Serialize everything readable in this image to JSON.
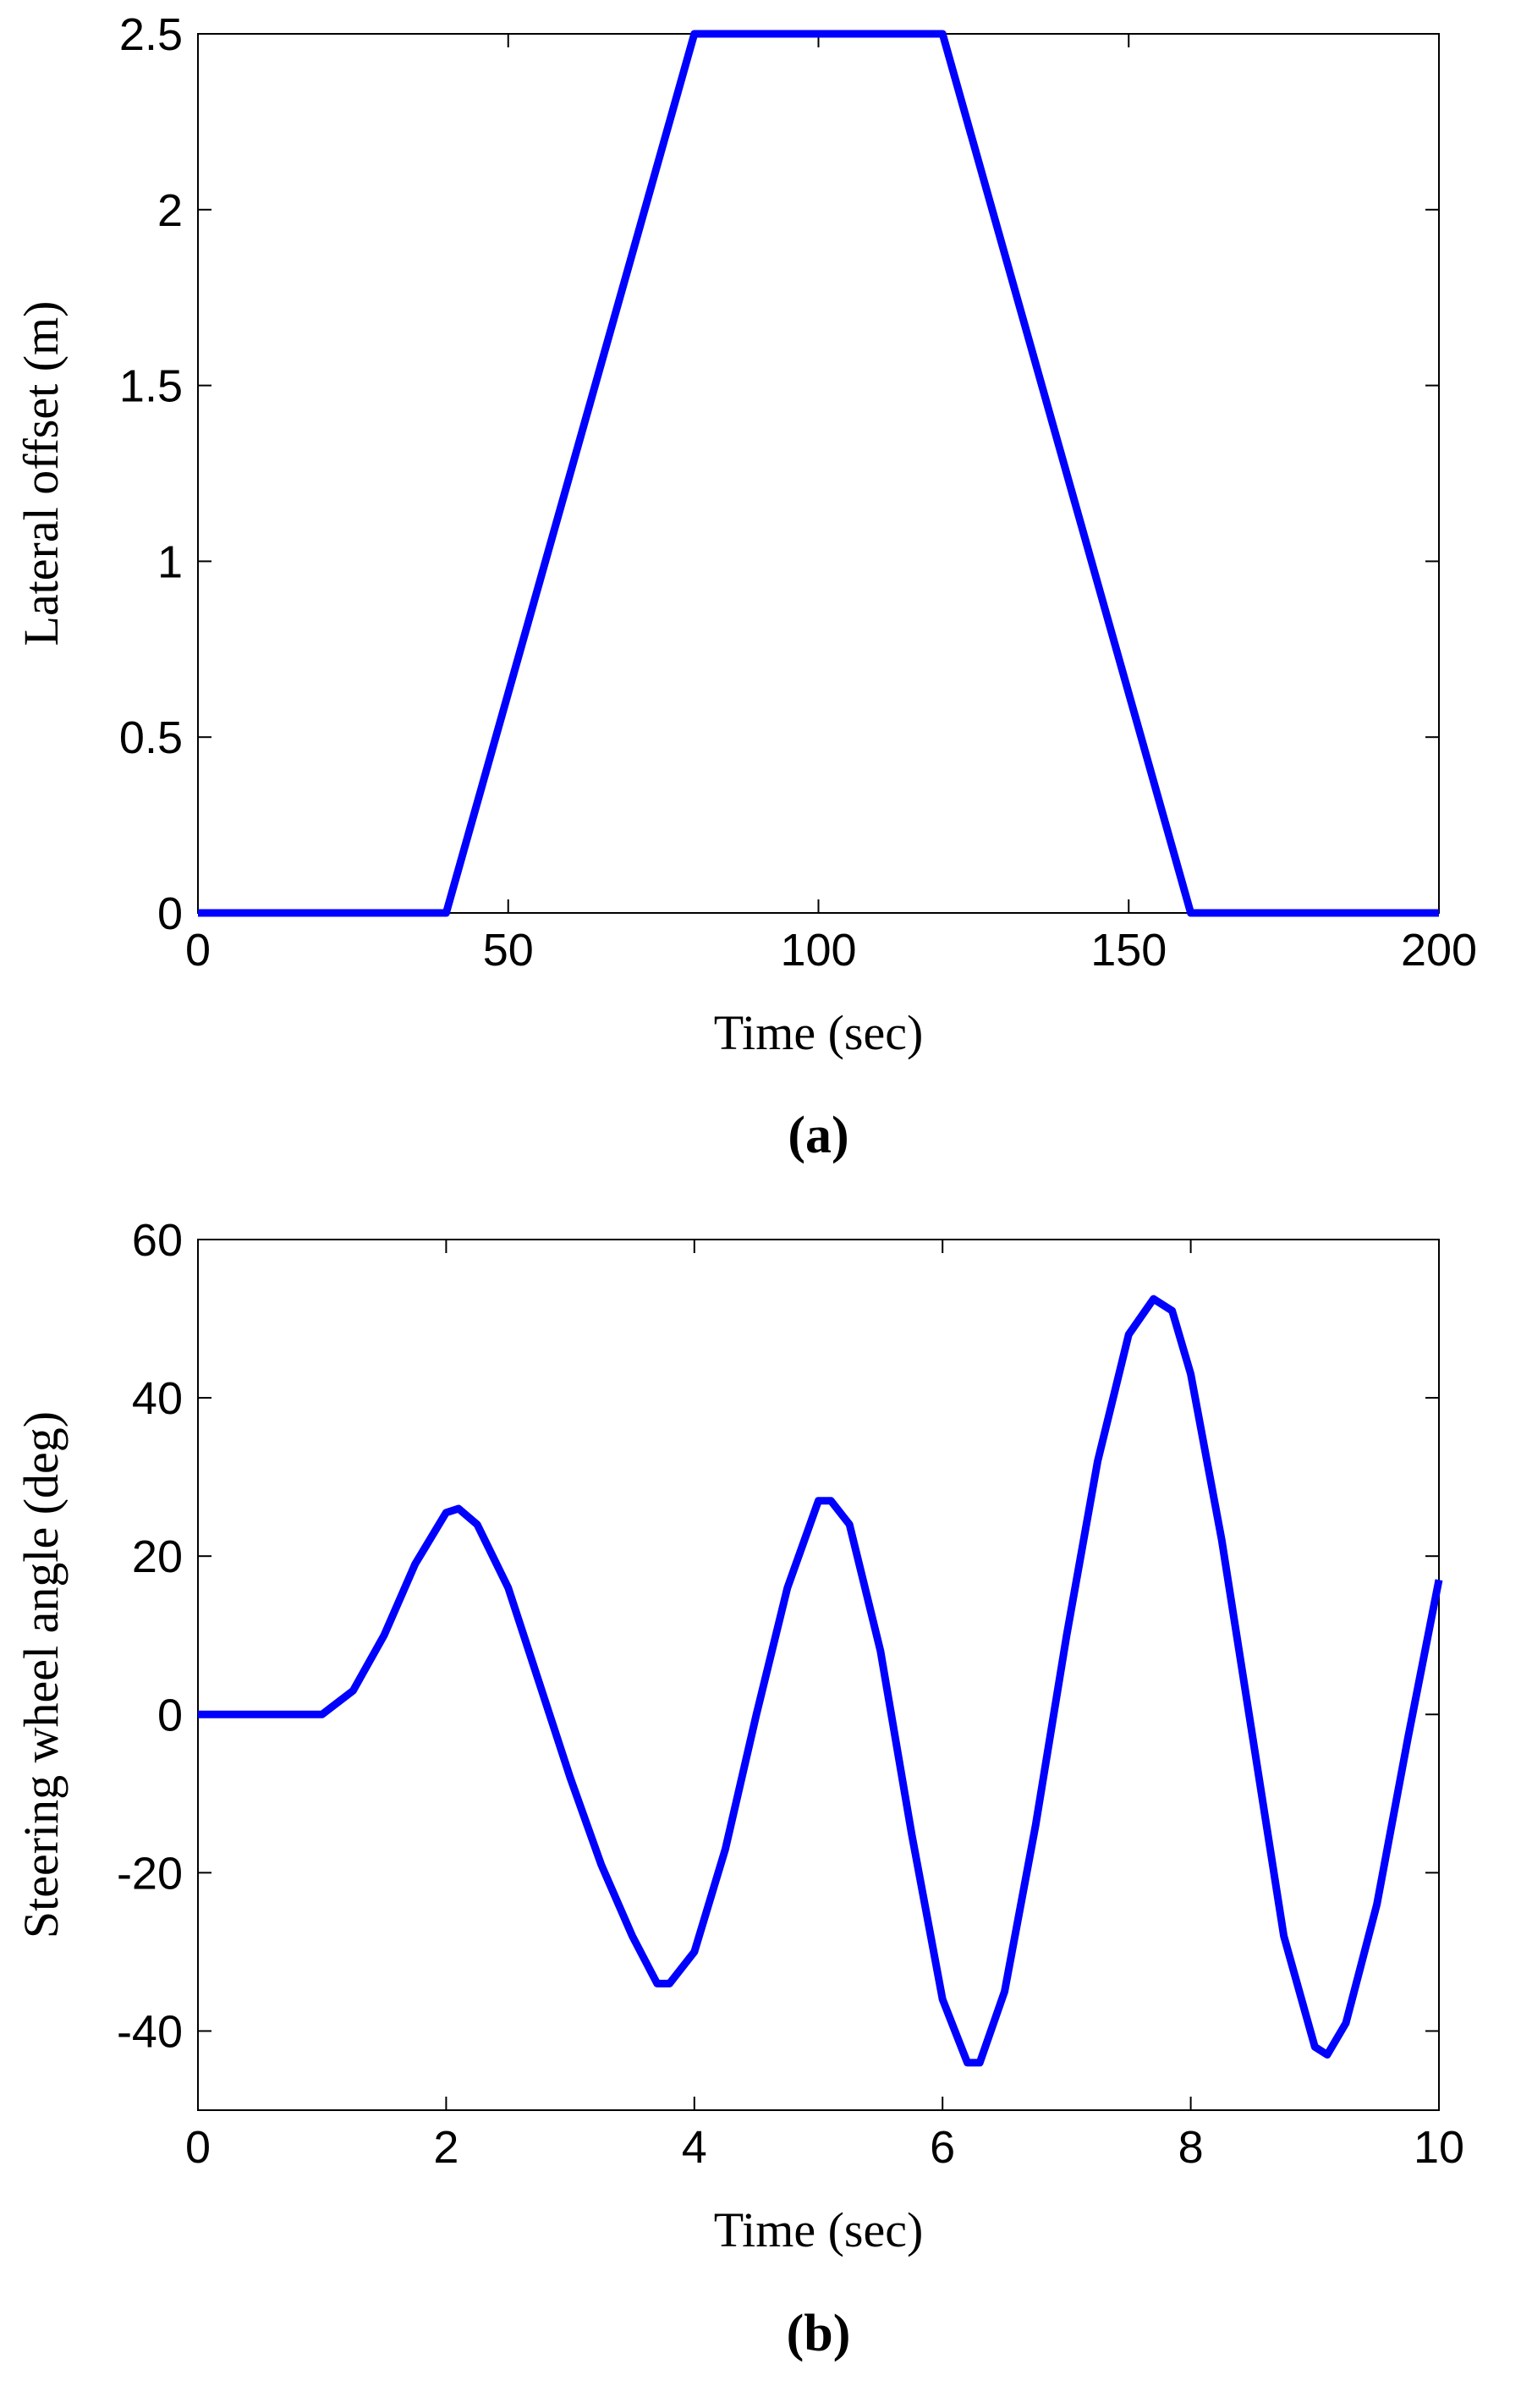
{
  "chart_data": [
    {
      "type": "line",
      "caption": "(a)",
      "x_label": "Time (sec)",
      "y_label": "Lateral offset (m)",
      "x": [
        0,
        40,
        80,
        120,
        160,
        200
      ],
      "series": [
        {
          "color": "#0000ff",
          "values": [
            0,
            0,
            2.5,
            2.5,
            0,
            0
          ]
        }
      ],
      "xlim": [
        0,
        200
      ],
      "xticks": [
        0,
        50,
        100,
        150,
        200
      ],
      "ylim": [
        0,
        2.5
      ],
      "yticks": [
        0,
        0.5,
        1,
        1.5,
        2,
        2.5
      ]
    },
    {
      "type": "line",
      "caption": "(b)",
      "x_label": "Time (sec)",
      "y_label": "Steering wheel angle (deg)",
      "x": [
        0,
        0.5,
        1.0,
        1.25,
        1.5,
        1.75,
        2.0,
        2.1,
        2.25,
        2.5,
        2.75,
        3.0,
        3.25,
        3.5,
        3.7,
        3.8,
        4.0,
        4.25,
        4.5,
        4.75,
        5.0,
        5.1,
        5.25,
        5.5,
        5.75,
        6.0,
        6.2,
        6.3,
        6.5,
        6.75,
        7.0,
        7.25,
        7.5,
        7.7,
        7.85,
        8.0,
        8.25,
        8.5,
        8.75,
        9.0,
        9.1,
        9.25,
        9.5,
        9.75,
        10.0
      ],
      "series": [
        {
          "color": "#0000ff",
          "values": [
            0,
            0,
            0,
            3,
            10,
            19,
            25.5,
            26,
            24,
            16,
            4,
            -8,
            -19,
            -28,
            -34,
            -34,
            -30,
            -17,
            0,
            16,
            27,
            27,
            24,
            8,
            -15,
            -36,
            -44,
            -44,
            -35,
            -14,
            10,
            32,
            48,
            52.5,
            51,
            43,
            22,
            -3,
            -28,
            -42,
            -43,
            -39,
            -24,
            -3,
            17
          ]
        }
      ],
      "xlim": [
        0,
        10
      ],
      "xticks": [
        0,
        2,
        4,
        6,
        8,
        10
      ],
      "ylim": [
        -50,
        60
      ],
      "yticks": [
        -40,
        -20,
        0,
        20,
        40,
        60
      ]
    }
  ]
}
